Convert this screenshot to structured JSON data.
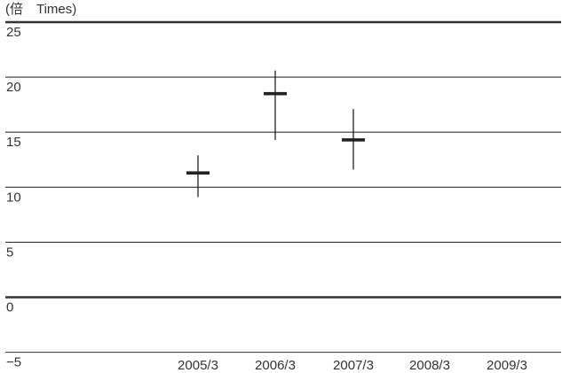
{
  "chart_data": {
    "type": "hi-lo-close",
    "title": "",
    "ylabel": "(倍　Times)",
    "xlabel": "",
    "ylim": [
      -5,
      25
    ],
    "yticks": [
      "25",
      "20",
      "15",
      "10",
      "5",
      "0",
      "−5"
    ],
    "categories": [
      "2005/3",
      "2006/3",
      "2007/3",
      "2008/3",
      "2009/3"
    ],
    "series": [
      {
        "high": [
          12.9,
          20.6,
          17.1,
          null,
          null
        ],
        "low": [
          9.1,
          14.3,
          11.6,
          null,
          null
        ],
        "close": [
          11.3,
          18.5,
          14.3,
          null,
          null
        ]
      }
    ],
    "grid": true,
    "legend": "none",
    "colors": {
      "text": "#333333",
      "grid": "#333333",
      "marks": "#222222"
    }
  }
}
